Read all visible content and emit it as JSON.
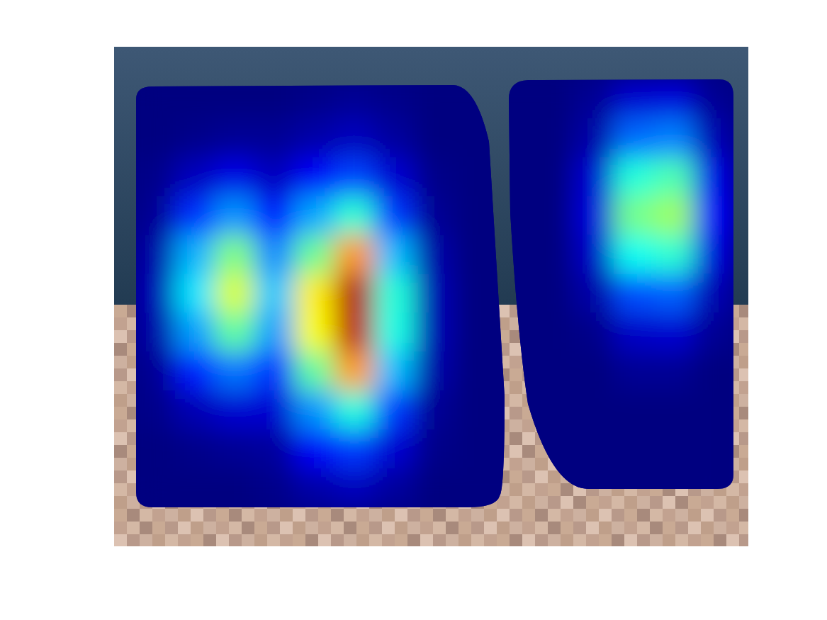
{
  "chart_data": {
    "type": "heatmap",
    "tick_labels": false,
    "color_range": [
      0,
      1
    ],
    "cells": [
      [
        0,
        0,
        0,
        0,
        0.01,
        0.02,
        0.01,
        0,
        0,
        0,
        0,
        0.02,
        0.08,
        0.09,
        0.02
      ],
      [
        0,
        0.01,
        0.02,
        0.02,
        0.04,
        0.06,
        0.03,
        0,
        0,
        0,
        0,
        0.04,
        0.23,
        0.25,
        0.05
      ],
      [
        0.01,
        0.06,
        0.1,
        0.06,
        0.12,
        0.19,
        0.08,
        0.01,
        0,
        0,
        0,
        0.08,
        0.41,
        0.45,
        0.1
      ],
      [
        0.02,
        0.17,
        0.27,
        0.14,
        0.29,
        0.42,
        0.18,
        0.02,
        0,
        0,
        0,
        0.09,
        0.49,
        0.53,
        0.12
      ],
      [
        0.04,
        0.3,
        0.5,
        0.26,
        0.48,
        0.73,
        0.31,
        0.04,
        0,
        0,
        0,
        0.07,
        0.39,
        0.42,
        0.09
      ],
      [
        0.05,
        0.35,
        0.59,
        0.32,
        0.64,
        0.95,
        0.41,
        0.05,
        0,
        0,
        0,
        0.04,
        0.2,
        0.22,
        0.05
      ],
      [
        0.04,
        0.28,
        0.47,
        0.28,
        0.62,
        0.94,
        0.4,
        0.05,
        0,
        0,
        0,
        0.01,
        0.07,
        0.08,
        0.02
      ],
      [
        0.02,
        0.15,
        0.24,
        0.17,
        0.47,
        0.72,
        0.31,
        0.04,
        0,
        0,
        0,
        0,
        0.02,
        0.02,
        0
      ],
      [
        0.01,
        0.05,
        0.08,
        0.08,
        0.27,
        0.41,
        0.18,
        0.02,
        0,
        0,
        0,
        0,
        0,
        0,
        0
      ],
      [
        0,
        0.01,
        0.02,
        0.03,
        0.12,
        0.18,
        0.08,
        0.01,
        0,
        0,
        0,
        0,
        0,
        0,
        0
      ],
      [
        0,
        0,
        0,
        0.01,
        0.04,
        0.06,
        0.03,
        0,
        0,
        0,
        0,
        0,
        0,
        0,
        0
      ]
    ]
  }
}
